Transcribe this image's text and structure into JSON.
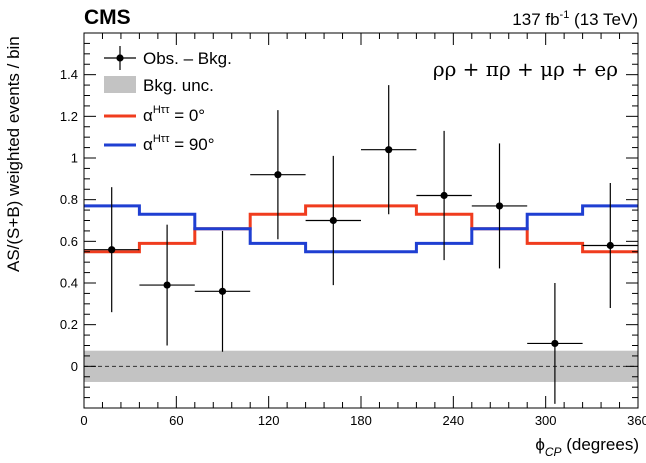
{
  "header": {
    "experiment": "CMS",
    "lumi_value": "137 fb",
    "lumi_exp": "-1",
    "energy": " (13 TeV)"
  },
  "channel_label": "ρρ + πρ + μρ + eρ",
  "legend": {
    "obs": "Obs. – Bkg.",
    "unc": "Bkg. unc.",
    "h0": {
      "alpha": "α",
      "sup": "Hττ",
      "rest": " = 0°"
    },
    "h90": {
      "alpha": "α",
      "sup": "Hττ",
      "rest": " = 90°"
    }
  },
  "axes": {
    "xlabel_main": "ϕ",
    "xlabel_sub": "CP",
    "xlabel_unit": " (degrees)",
    "ylabel": "AS/(S+B) weighted events / bin"
  },
  "colors": {
    "red": "#f03c1e",
    "blue": "#1f3fd2",
    "band": "#c3c3c3"
  },
  "chart_data": {
    "type": "line",
    "xlim": [
      0,
      360
    ],
    "ylim": [
      -0.2,
      1.6
    ],
    "x_ticks": [
      0,
      60,
      120,
      180,
      240,
      300,
      360
    ],
    "y_ticks": [
      0,
      0.2,
      0.4,
      0.6,
      0.8,
      1,
      1.2,
      1.4
    ],
    "x_tick_labels": [
      "0",
      "60",
      "120",
      "180",
      "240",
      "300",
      "360"
    ],
    "y_tick_labels": [
      "0",
      "0.2",
      "0.4",
      "0.6",
      "0.8",
      "1",
      "1.2",
      "1.4"
    ],
    "bin_edges": [
      0,
      36,
      72,
      108,
      144,
      180,
      216,
      252,
      288,
      324,
      360
    ],
    "observed": {
      "x": [
        18,
        54,
        90,
        126,
        162,
        198,
        234,
        270,
        306,
        342
      ],
      "y": [
        0.56,
        0.39,
        0.36,
        0.92,
        0.7,
        1.04,
        0.82,
        0.77,
        0.11,
        0.58
      ],
      "err": [
        0.3,
        0.29,
        0.29,
        0.31,
        0.31,
        0.31,
        0.31,
        0.3,
        0.29,
        0.3
      ]
    },
    "background_uncertainty": 0.075,
    "series": [
      {
        "name": "α^Hττ = 0°",
        "color": "#f03c1e",
        "values": [
          0.55,
          0.59,
          0.66,
          0.73,
          0.77,
          0.77,
          0.73,
          0.66,
          0.59,
          0.55
        ]
      },
      {
        "name": "α^Hττ = 90°",
        "color": "#1f3fd2",
        "values": [
          0.77,
          0.73,
          0.66,
          0.59,
          0.55,
          0.55,
          0.59,
          0.66,
          0.73,
          0.77
        ]
      }
    ]
  }
}
